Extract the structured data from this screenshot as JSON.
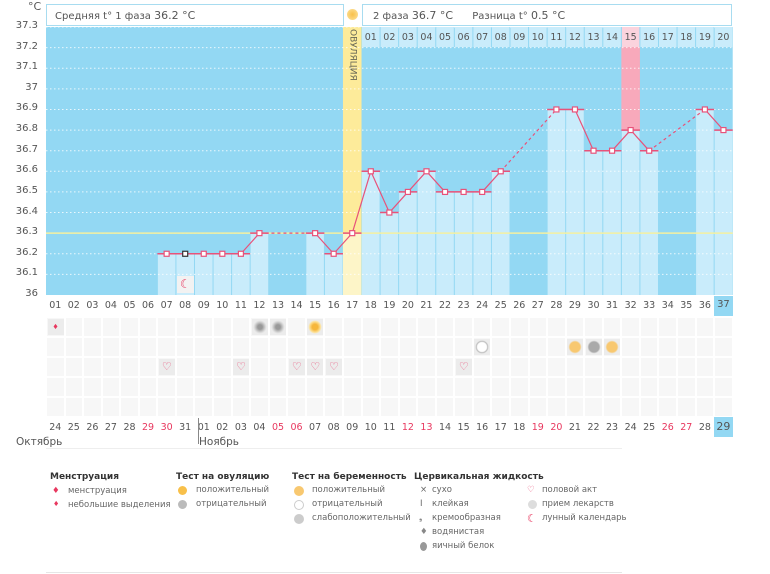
{
  "y_unit": "°C",
  "header": {
    "phase1_label": "Средняя t° 1 фаза",
    "phase1_value": "36.2 °C",
    "phase2_label": "2 фаза",
    "phase2_value": "36.7 °C",
    "diff_label": "Разница t°",
    "diff_value": "0.5 °C",
    "ovulation_label": "ОВУЛЯЦИЯ"
  },
  "chart_data": {
    "type": "line",
    "ylim": [
      36,
      37.3
    ],
    "yticks": [
      "36",
      "36.1",
      "36.2",
      "36.3",
      "36.4",
      "36.5",
      "36.6",
      "36.7",
      "36.8",
      "36.9",
      "37",
      "37.1",
      "37.2",
      "37.3"
    ],
    "cycle_days": [
      "01",
      "02",
      "03",
      "04",
      "05",
      "06",
      "07",
      "08",
      "09",
      "10",
      "11",
      "12",
      "13",
      "14",
      "15",
      "16",
      "17",
      "18",
      "19",
      "20",
      "21",
      "22",
      "23",
      "24",
      "25",
      "26",
      "27",
      "28",
      "29",
      "30",
      "31",
      "32",
      "33",
      "34",
      "35",
      "36",
      "37"
    ],
    "temperatures": [
      null,
      null,
      null,
      null,
      null,
      null,
      36.2,
      36.2,
      36.2,
      36.2,
      36.2,
      36.3,
      null,
      null,
      36.3,
      36.2,
      36.3,
      36.6,
      36.4,
      36.5,
      36.6,
      36.5,
      36.5,
      36.5,
      36.6,
      null,
      null,
      36.9,
      36.9,
      36.7,
      36.7,
      36.8,
      36.7,
      null,
      null,
      36.9,
      36.8
    ],
    "coverline": 36.3,
    "ovulation_day": 17,
    "highlight_day": 32,
    "phase2_days": [
      "01",
      "02",
      "03",
      "04",
      "05",
      "06",
      "07",
      "08",
      "09",
      "10",
      "11",
      "12",
      "13",
      "14",
      "15",
      "16",
      "17",
      "18",
      "19",
      "20"
    ],
    "dates": [
      "24",
      "25",
      "26",
      "27",
      "28",
      "29",
      "30",
      "31",
      "01",
      "02",
      "03",
      "04",
      "05",
      "06",
      "07",
      "08",
      "09",
      "10",
      "11",
      "12",
      "13",
      "14",
      "15",
      "16",
      "17",
      "18",
      "19",
      "20",
      "21",
      "22",
      "23",
      "24",
      "25",
      "26",
      "27",
      "28",
      "29"
    ],
    "weekend_indices": [
      5,
      6,
      12,
      13,
      19,
      20,
      26,
      27,
      33,
      34
    ],
    "months": [
      "Октябрь",
      "Ноябрь"
    ],
    "today_index": 36,
    "grid": true
  },
  "markers": {
    "moon_day": 8,
    "menstruation_small": [
      1
    ],
    "ovulation_negative": [
      12,
      13
    ],
    "ovulation_positive": [
      15
    ],
    "pregnancy_negative": [
      24
    ],
    "pregnancy_positive": [
      29,
      31
    ],
    "pregnancy_weak": [
      30
    ],
    "intercourse": [
      7,
      11,
      14,
      15,
      16,
      23
    ]
  },
  "colors": {
    "bg": "#93d8f3",
    "bar": "#c9ecfb",
    "line": "#e8527a",
    "ovulation": "#fdeb9a",
    "highlight": "#f8a9bb",
    "coverline": "#f4f0a0"
  },
  "legend": {
    "menstruation": {
      "title": "Менструация",
      "items": [
        "менструация",
        "небольшие выделения"
      ]
    },
    "ovulation_test": {
      "title": "Тест на овуляцию",
      "items": [
        "положительный",
        "отрицательный"
      ]
    },
    "pregnancy_test": {
      "title": "Тест на беременность",
      "items": [
        "положительный",
        "отрицательный",
        "слабоположительный"
      ]
    },
    "cervical": {
      "title": "Цервикальная жидкость",
      "items": [
        "сухо",
        "клейкая",
        "кремообразная",
        "водянистая",
        "яичный белок"
      ]
    },
    "other": {
      "items": [
        "половой акт",
        "прием лекарств",
        "лунный календарь"
      ]
    }
  }
}
